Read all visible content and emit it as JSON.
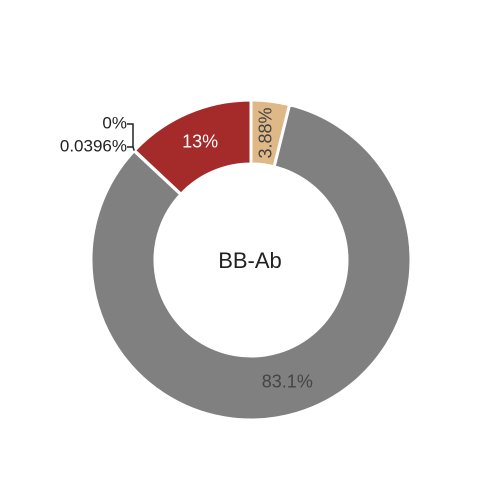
{
  "chart_data": {
    "type": "pie",
    "variant": "donut",
    "center_label": "BB-Ab",
    "slices": [
      {
        "label": "3.88%",
        "value": 3.88,
        "color": "#deb887",
        "label_color": "#444444",
        "label_style": "inside-rotated"
      },
      {
        "label": "83.1%",
        "value": 83.1,
        "color": "#808080",
        "label_color": "#444444",
        "label_style": "inside"
      },
      {
        "label": "0.0396%",
        "value": 0.0396,
        "color": "#808080",
        "label_color": "#222222",
        "label_style": "outside"
      },
      {
        "label": "0%",
        "value": 0,
        "color": "#808080",
        "label_color": "#222222",
        "label_style": "outside"
      },
      {
        "label": "13%",
        "value": 13.0,
        "color": "#a52a2a",
        "label_color": "#ffffff",
        "label_style": "inside"
      }
    ]
  }
}
